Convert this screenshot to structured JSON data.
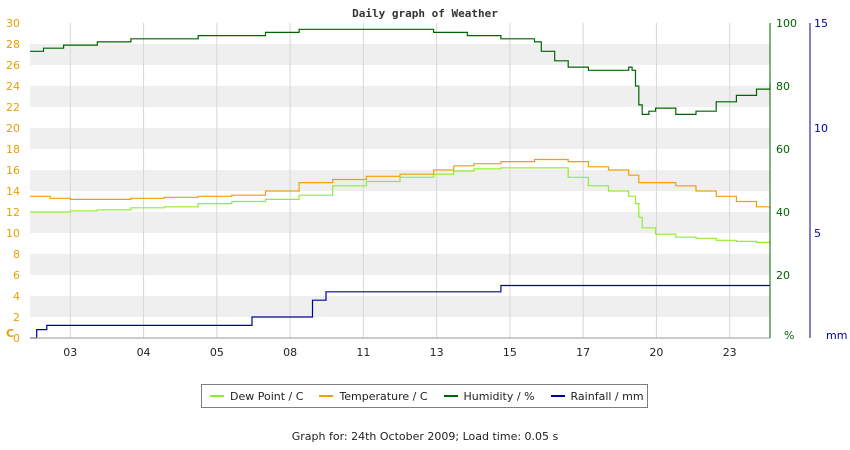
{
  "chart_data": {
    "type": "line",
    "title": "Daily graph of Weather",
    "x_ticks": [
      "03",
      "04",
      "05",
      "08",
      "11",
      "13",
      "15",
      "17",
      "20",
      "23"
    ],
    "left_axis": {
      "unit": "C",
      "ylim": [
        0,
        30
      ],
      "ticks": [
        "0",
        "2",
        "4",
        "6",
        "8",
        "10",
        "12",
        "14",
        "16",
        "18",
        "20",
        "22",
        "24",
        "26",
        "28",
        "30"
      ]
    },
    "humidity_axis": {
      "unit": "%",
      "ylim": [
        0,
        100
      ],
      "ticks": [
        "20",
        "40",
        "60",
        "80",
        "100"
      ]
    },
    "rain_axis": {
      "unit": "mm",
      "ylim": [
        0,
        15
      ],
      "ticks": [
        "5",
        "10",
        "15"
      ]
    },
    "grid": true,
    "series": [
      {
        "name": "Dew Point / C",
        "color": "#90ee30",
        "axis": "left",
        "x": [
          0.0,
          0.3,
          0.6,
          1.0,
          1.5,
          2.0,
          2.5,
          3.0,
          3.5,
          4.0,
          4.5,
          5.0,
          5.5,
          6.0,
          6.3,
          6.6,
          7.0,
          7.5,
          8.0,
          8.3,
          8.6,
          8.9,
          9.0,
          9.05,
          9.1,
          9.3,
          9.6,
          9.9,
          10.2,
          10.5,
          10.8,
          11.0
        ],
        "y": [
          12.0,
          12.0,
          12.1,
          12.2,
          12.4,
          12.5,
          12.8,
          13.0,
          13.2,
          13.6,
          14.5,
          14.9,
          15.3,
          15.6,
          15.9,
          16.1,
          16.2,
          16.2,
          15.3,
          14.5,
          14.0,
          13.5,
          12.8,
          11.5,
          10.5,
          9.9,
          9.6,
          9.5,
          9.3,
          9.2,
          9.1,
          9.1
        ]
      },
      {
        "name": "Temperature / C",
        "color": "#f0a000",
        "axis": "left",
        "x": [
          0.0,
          0.3,
          0.6,
          1.0,
          1.5,
          2.0,
          2.5,
          3.0,
          3.5,
          4.0,
          4.5,
          5.0,
          5.5,
          6.0,
          6.3,
          6.6,
          7.0,
          7.5,
          8.0,
          8.3,
          8.6,
          8.9,
          9.05,
          9.3,
          9.6,
          9.9,
          10.2,
          10.5,
          10.8,
          11.0
        ],
        "y": [
          13.5,
          13.3,
          13.2,
          13.2,
          13.3,
          13.4,
          13.5,
          13.6,
          14.0,
          14.8,
          15.1,
          15.4,
          15.6,
          16.0,
          16.4,
          16.6,
          16.8,
          17.0,
          16.8,
          16.3,
          16.0,
          15.5,
          14.8,
          14.8,
          14.5,
          14.0,
          13.5,
          13.0,
          12.5,
          12.2
        ]
      },
      {
        "name": "Humidity / %",
        "color": "#006400",
        "axis": "humidity",
        "x": [
          0.0,
          0.2,
          0.5,
          1.0,
          1.5,
          2.0,
          2.5,
          3.0,
          3.5,
          4.0,
          4.5,
          5.0,
          5.5,
          6.0,
          6.5,
          7.0,
          7.3,
          7.5,
          7.6,
          7.8,
          8.0,
          8.3,
          8.6,
          8.9,
          8.95,
          9.0,
          9.05,
          9.1,
          9.2,
          9.3,
          9.6,
          9.9,
          10.2,
          10.5,
          10.8,
          11.0
        ],
        "y": [
          91,
          92,
          93,
          94,
          95,
          95,
          96,
          96,
          97,
          98,
          98,
          98,
          98,
          97,
          96,
          95,
          95,
          94,
          91,
          88,
          86,
          85,
          85,
          86,
          85,
          80,
          74,
          71,
          72,
          73,
          71,
          72,
          75,
          77,
          79,
          81
        ]
      },
      {
        "name": "Rainfall / mm",
        "color": "#0000a0",
        "axis": "rain",
        "x": [
          0.0,
          0.1,
          0.25,
          0.6,
          1.0,
          2.0,
          3.0,
          3.3,
          3.8,
          4.0,
          4.2,
          4.4,
          4.8,
          5.0,
          6.0,
          7.0,
          8.0,
          9.0,
          10.0,
          11.0
        ],
        "y": [
          0.0,
          0.4,
          0.6,
          0.6,
          0.6,
          0.6,
          0.6,
          1.0,
          1.0,
          1.0,
          1.8,
          2.2,
          2.2,
          2.2,
          2.2,
          2.5,
          2.5,
          2.5,
          2.5,
          2.5
        ]
      }
    ]
  },
  "legend": {
    "dew": {
      "label": "Dew Point / C",
      "color": "#90ee30"
    },
    "temp": {
      "label": "Temperature / C",
      "color": "#f0a000"
    },
    "hum": {
      "label": "Humidity / %",
      "color": "#006400"
    },
    "rain": {
      "label": "Rainfall / mm",
      "color": "#0000a0"
    }
  },
  "footer": "Graph for: 24th October 2009; Load time: 0.05 s"
}
